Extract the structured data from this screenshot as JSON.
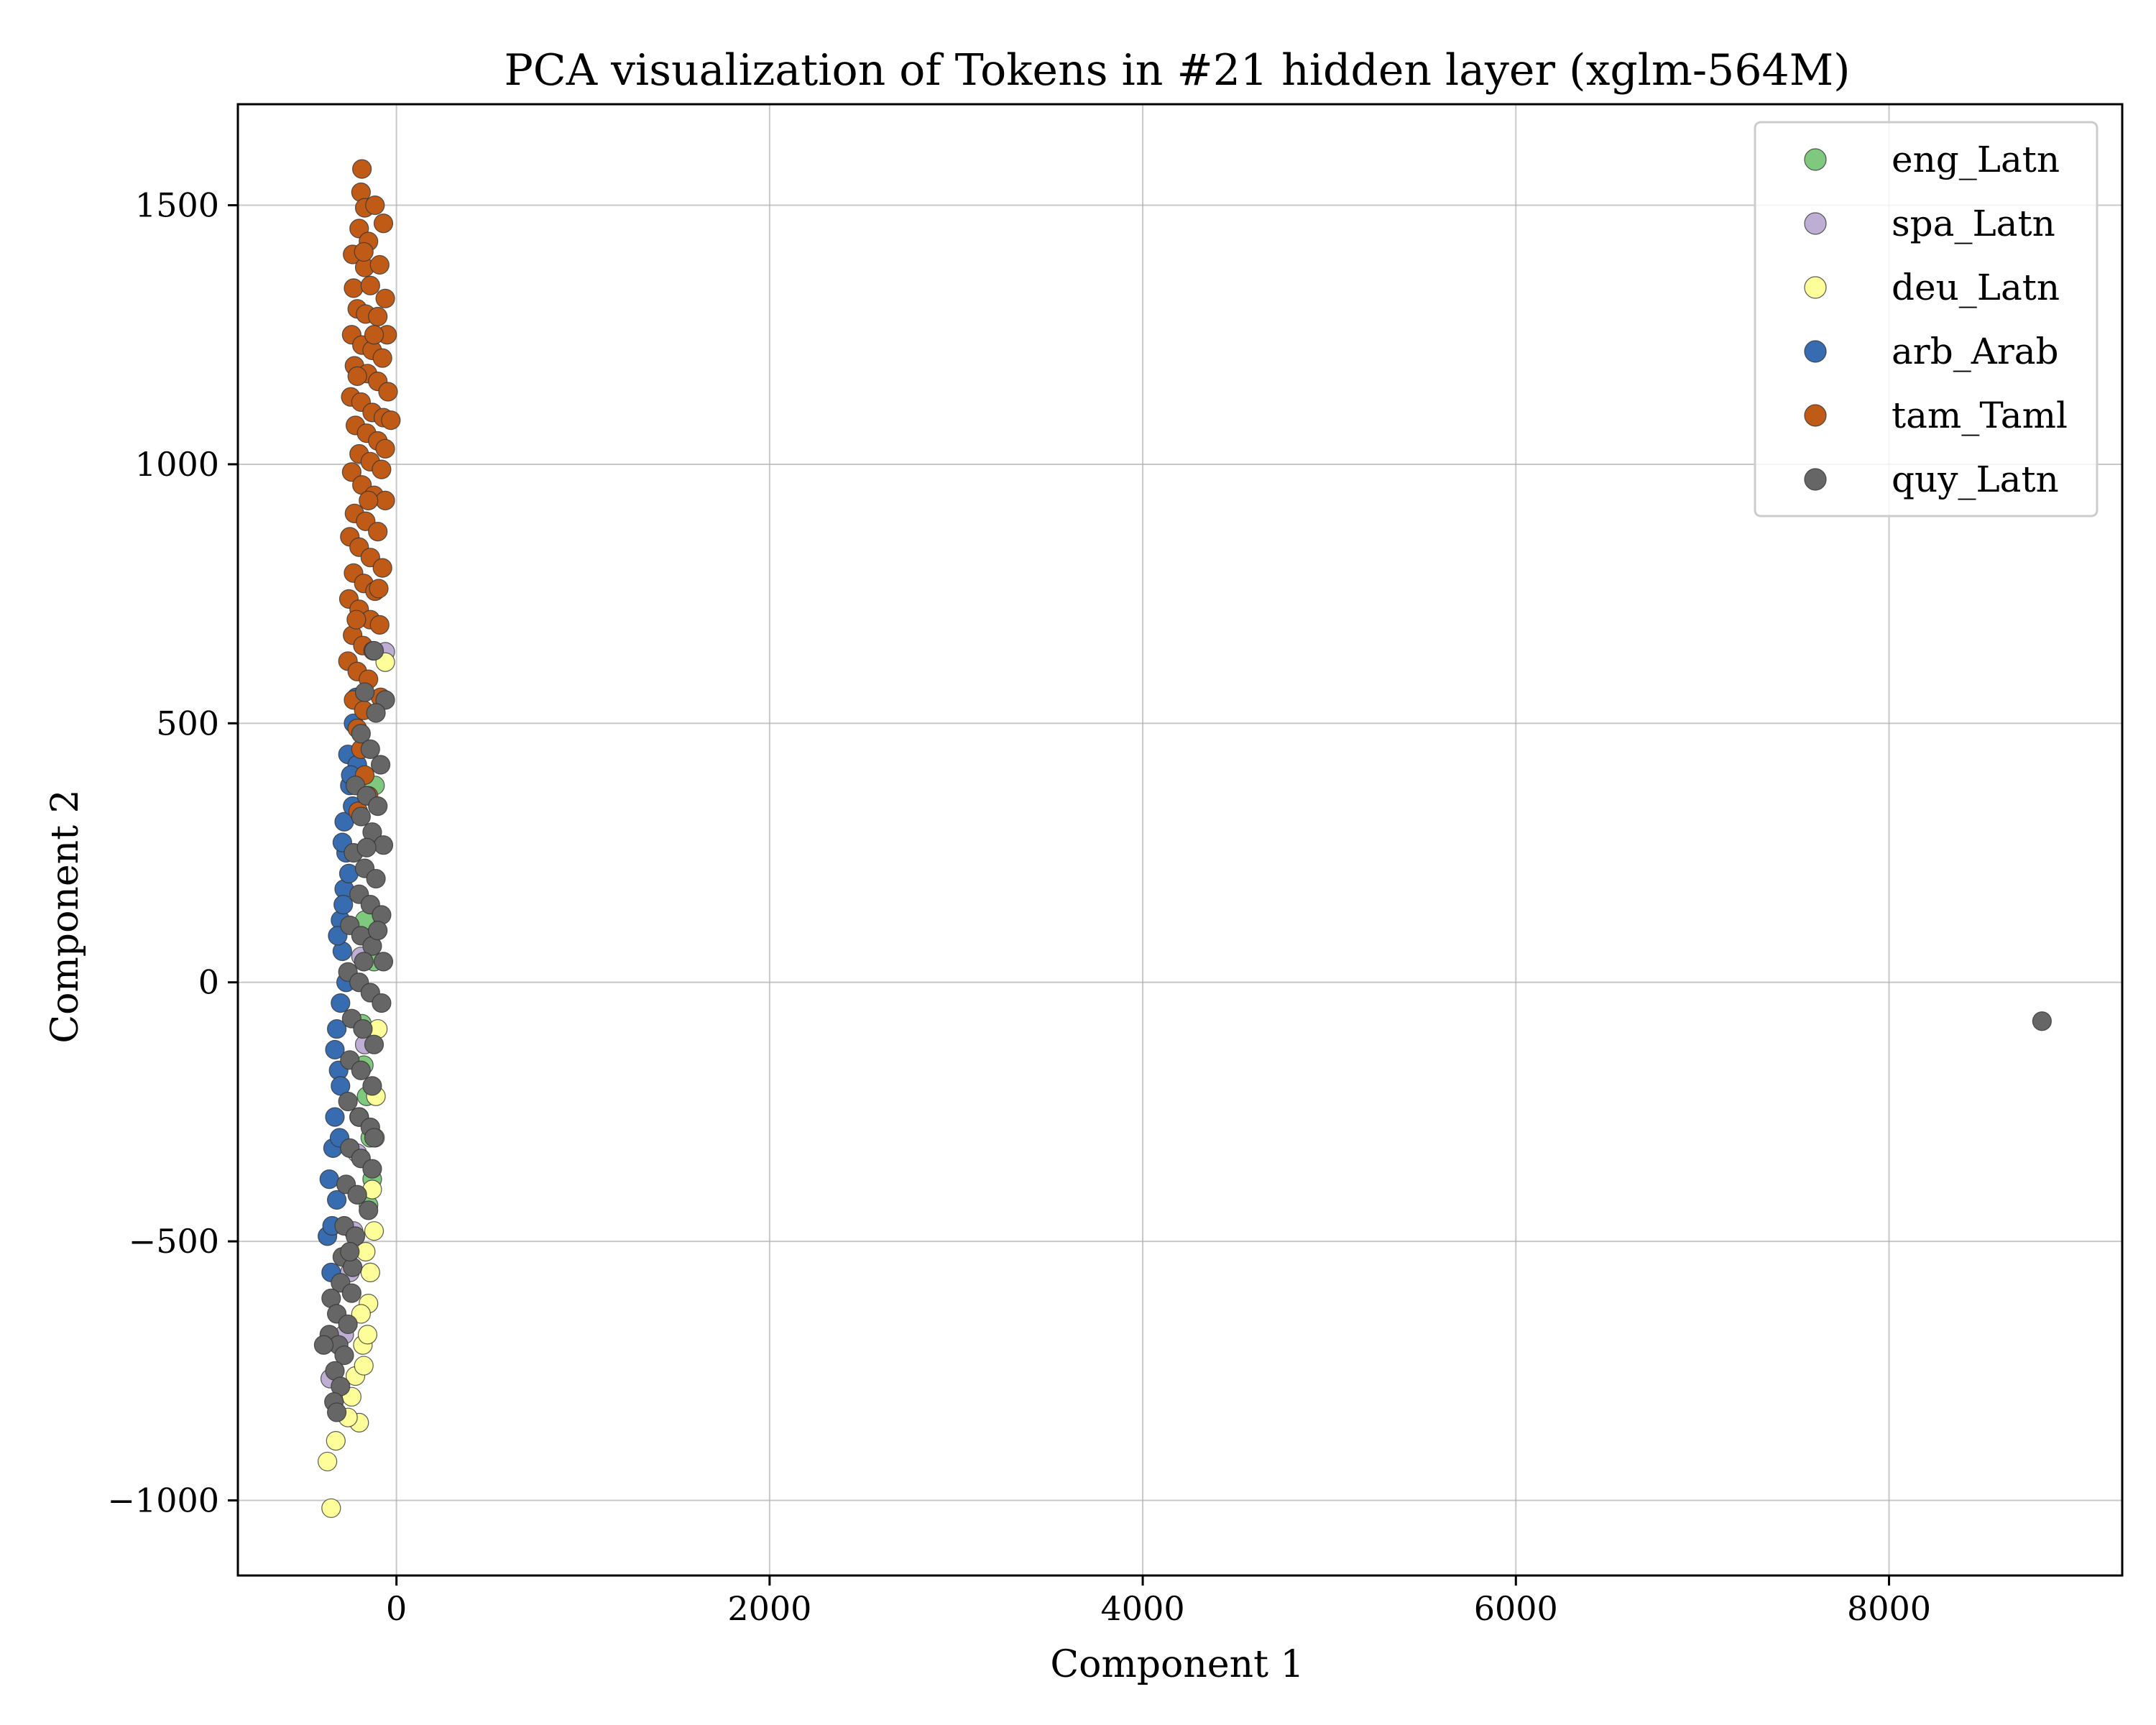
{
  "chart_data": {
    "type": "scatter",
    "title": "PCA visualization of Tokens in #21 hidden layer (xglm-564M)",
    "xlabel": "Component 1",
    "ylabel": "Component 2",
    "xlim": [
      -850,
      9250
    ],
    "ylim": [
      -1145,
      1695
    ],
    "xticks": [
      0,
      2000,
      4000,
      6000,
      8000
    ],
    "yticks": [
      -1000,
      -500,
      0,
      500,
      1000,
      1500
    ],
    "xtick_labels": [
      "0",
      "2000",
      "4000",
      "6000",
      "8000"
    ],
    "ytick_labels": [
      "−1000",
      "−500",
      "0",
      "500",
      "1000",
      "1500"
    ],
    "grid": true,
    "legend_position": "top-right",
    "series": [
      {
        "name": "eng_Latn",
        "color": "#7fc97f",
        "approximate": true,
        "points": [
          [
            -175,
            -160
          ],
          [
            -160,
            -220
          ],
          [
            -140,
            -300
          ],
          [
            -130,
            -380
          ],
          [
            -150,
            -430
          ],
          [
            -185,
            -80
          ],
          [
            -120,
            40
          ],
          [
            -115,
            380
          ],
          [
            -170,
            120
          ],
          [
            -200,
            -260
          ]
        ]
      },
      {
        "name": "spa_Latn",
        "color": "#beaed4",
        "approximate": true,
        "points": [
          [
            -60,
            638
          ],
          [
            -170,
            -120
          ],
          [
            -210,
            -330
          ],
          [
            -230,
            -480
          ],
          [
            -355,
            -765
          ],
          [
            -280,
            -680
          ],
          [
            -190,
            50
          ],
          [
            -250,
            -560
          ]
        ]
      },
      {
        "name": "deu_Latn",
        "color": "#fdfd99",
        "approximate": true,
        "points": [
          [
            -60,
            618
          ],
          [
            -370,
            -925
          ],
          [
            -350,
            -1015
          ],
          [
            -325,
            -885
          ],
          [
            -200,
            -850
          ],
          [
            -240,
            -800
          ],
          [
            -180,
            -700
          ],
          [
            -150,
            -620
          ],
          [
            -140,
            -560
          ],
          [
            -120,
            -480
          ],
          [
            -165,
            -520
          ],
          [
            -130,
            -400
          ],
          [
            -115,
            -300
          ],
          [
            -110,
            -220
          ],
          [
            -100,
            -90
          ],
          [
            -220,
            -760
          ],
          [
            -190,
            -640
          ],
          [
            -260,
            -840
          ],
          [
            -175,
            -740
          ],
          [
            -155,
            -680
          ]
        ]
      },
      {
        "name": "arb_Arab",
        "color": "#386cb0",
        "approximate": true,
        "points": [
          [
            -370,
            -490
          ],
          [
            -360,
            -380
          ],
          [
            -340,
            -320
          ],
          [
            -330,
            -260
          ],
          [
            -310,
            -170
          ],
          [
            -320,
            -90
          ],
          [
            -300,
            -40
          ],
          [
            -290,
            60
          ],
          [
            -300,
            120
          ],
          [
            -280,
            180
          ],
          [
            -270,
            250
          ],
          [
            -280,
            310
          ],
          [
            -250,
            380
          ],
          [
            -260,
            440
          ],
          [
            -230,
            500
          ],
          [
            -215,
            550
          ],
          [
            -350,
            -560
          ],
          [
            -320,
            -420
          ],
          [
            -300,
            -200
          ],
          [
            -270,
            0
          ],
          [
            -255,
            210
          ],
          [
            -235,
            340
          ],
          [
            -330,
            -130
          ],
          [
            -315,
            90
          ],
          [
            -290,
            270
          ],
          [
            -210,
            420
          ],
          [
            -345,
            -470
          ],
          [
            -305,
            -300
          ],
          [
            -285,
            150
          ],
          [
            -245,
            400
          ]
        ]
      },
      {
        "name": "tam_Taml",
        "color": "#bf5b17",
        "approximate": true,
        "points": [
          [
            -185,
            1570
          ],
          [
            -190,
            1525
          ],
          [
            -170,
            1495
          ],
          [
            -115,
            1500
          ],
          [
            -70,
            1465
          ],
          [
            -200,
            1455
          ],
          [
            -235,
            1405
          ],
          [
            -150,
            1430
          ],
          [
            -170,
            1380
          ],
          [
            -90,
            1385
          ],
          [
            -230,
            1340
          ],
          [
            -140,
            1345
          ],
          [
            -60,
            1320
          ],
          [
            -210,
            1300
          ],
          [
            -165,
            1290
          ],
          [
            -100,
            1285
          ],
          [
            -50,
            1250
          ],
          [
            -240,
            1250
          ],
          [
            -185,
            1230
          ],
          [
            -130,
            1220
          ],
          [
            -75,
            1205
          ],
          [
            -225,
            1190
          ],
          [
            -155,
            1175
          ],
          [
            -100,
            1160
          ],
          [
            -45,
            1140
          ],
          [
            -245,
            1130
          ],
          [
            -190,
            1120
          ],
          [
            -130,
            1100
          ],
          [
            -70,
            1090
          ],
          [
            -30,
            1085
          ],
          [
            -220,
            1075
          ],
          [
            -160,
            1060
          ],
          [
            -100,
            1045
          ],
          [
            -200,
            1020
          ],
          [
            -140,
            1005
          ],
          [
            -80,
            990
          ],
          [
            -240,
            985
          ],
          [
            -185,
            960
          ],
          [
            -120,
            940
          ],
          [
            -60,
            930
          ],
          [
            -225,
            905
          ],
          [
            -165,
            890
          ],
          [
            -100,
            870
          ],
          [
            -250,
            860
          ],
          [
            -200,
            840
          ],
          [
            -140,
            820
          ],
          [
            -75,
            800
          ],
          [
            -230,
            790
          ],
          [
            -175,
            770
          ],
          [
            -115,
            755
          ],
          [
            -255,
            740
          ],
          [
            -200,
            720
          ],
          [
            -140,
            700
          ],
          [
            -90,
            690
          ],
          [
            -235,
            670
          ],
          [
            -180,
            650
          ],
          [
            -260,
            620
          ],
          [
            -210,
            600
          ],
          [
            -150,
            585
          ],
          [
            -85,
            550
          ],
          [
            -230,
            545
          ],
          [
            -175,
            525
          ],
          [
            -210,
            490
          ],
          [
            -190,
            450
          ],
          [
            -170,
            400
          ],
          [
            -150,
            360
          ],
          [
            -205,
            330
          ],
          [
            -175,
            1410
          ],
          [
            -120,
            1250
          ],
          [
            -210,
            1170
          ],
          [
            -60,
            1030
          ],
          [
            -150,
            930
          ],
          [
            -95,
            760
          ],
          [
            -215,
            700
          ],
          [
            -125,
            640
          ]
        ]
      },
      {
        "name": "quy_Latn",
        "color": "#666666",
        "approximate": true,
        "points": [
          [
            8820,
            -75
          ],
          [
            -120,
            640
          ],
          [
            -170,
            560
          ],
          [
            -60,
            545
          ],
          [
            -110,
            520
          ],
          [
            -190,
            480
          ],
          [
            -140,
            450
          ],
          [
            -85,
            420
          ],
          [
            -220,
            380
          ],
          [
            -160,
            360
          ],
          [
            -100,
            340
          ],
          [
            -190,
            320
          ],
          [
            -130,
            290
          ],
          [
            -70,
            265
          ],
          [
            -230,
            250
          ],
          [
            -170,
            220
          ],
          [
            -110,
            200
          ],
          [
            -200,
            170
          ],
          [
            -140,
            150
          ],
          [
            -80,
            130
          ],
          [
            -250,
            110
          ],
          [
            -190,
            90
          ],
          [
            -130,
            70
          ],
          [
            -70,
            40
          ],
          [
            -260,
            20
          ],
          [
            -200,
            0
          ],
          [
            -140,
            -20
          ],
          [
            -80,
            -40
          ],
          [
            -240,
            -70
          ],
          [
            -180,
            -90
          ],
          [
            -120,
            -120
          ],
          [
            -250,
            -150
          ],
          [
            -190,
            -170
          ],
          [
            -130,
            -200
          ],
          [
            -260,
            -230
          ],
          [
            -200,
            -260
          ],
          [
            -140,
            -280
          ],
          [
            -250,
            -320
          ],
          [
            -190,
            -340
          ],
          [
            -130,
            -360
          ],
          [
            -270,
            -390
          ],
          [
            -210,
            -410
          ],
          [
            -150,
            -440
          ],
          [
            -280,
            -470
          ],
          [
            -220,
            -490
          ],
          [
            -290,
            -530
          ],
          [
            -235,
            -550
          ],
          [
            -300,
            -580
          ],
          [
            -240,
            -600
          ],
          [
            -350,
            -610
          ],
          [
            -320,
            -640
          ],
          [
            -260,
            -660
          ],
          [
            -360,
            -680
          ],
          [
            -310,
            -700
          ],
          [
            -280,
            -720
          ],
          [
            -390,
            -700
          ],
          [
            -330,
            -750
          ],
          [
            -300,
            -780
          ],
          [
            -335,
            -810
          ],
          [
            -320,
            -830
          ],
          [
            -160,
            260
          ],
          [
            -120,
            -300
          ],
          [
            -250,
            -520
          ],
          [
            -175,
            40
          ],
          [
            -100,
            100
          ]
        ]
      }
    ]
  }
}
